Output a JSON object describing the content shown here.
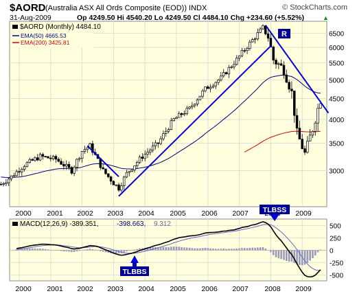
{
  "header": {
    "symbol": "$AORD",
    "name": "(Australia ASX All Ords Composite (EOD)) INDX",
    "watermark": "© StockCharts.com",
    "date": "31-Aug-2009",
    "quote": "Op 4249.50  Hi 4540.20  Lo 4249.50  Cl 4484.10  Chg +234.60 (+5.52%)",
    "quote_arrow": "▲"
  },
  "legend": {
    "main": "$AORD (Monthly) 4484.10",
    "ema50": "EMA(50) 4665.53",
    "ema200": "EMA(200) 3425.81"
  },
  "macd_legend": {
    "label": "MACD(12,26,9) -389.351,",
    "signal": "-398.663,",
    "hist": "9.312"
  },
  "annotations": {
    "r_label": "R",
    "tlbss_top": "TLBSS",
    "tlbbs_bottom": "TLBBS"
  },
  "colors": {
    "panel_bg": "#ffffdd",
    "candle": "#000000",
    "ema50": "#000080",
    "ema200": "#cc0000",
    "trendline": "#0000dd",
    "macd": "#000000",
    "signal": "#6666cc",
    "hist": "#9999bb",
    "label_bg": "#000099"
  },
  "chart_data": [
    {
      "type": "candlestick",
      "interval": "monthly",
      "x_ticks": [
        "2000",
        "2001",
        "2002",
        "2003",
        "2004",
        "2005",
        "2006",
        "2007",
        "2008",
        "2009"
      ],
      "y_ticks": [
        3000,
        3500,
        4000,
        4500,
        5000,
        5500,
        6000,
        6500
      ],
      "ylim": [
        2450,
        6950
      ],
      "y_scale": "log",
      "ohlc_series_start": "1999-06",
      "series": [
        {
          "name": "EMA(50)",
          "last": 4665.53
        },
        {
          "name": "EMA(200)",
          "last": 3425.81
        }
      ],
      "trendlines": [
        {
          "from": [
            "2002-03",
            3450
          ],
          "to": [
            "2003-03",
            2900
          ]
        },
        {
          "from": [
            "2003-03",
            2600
          ],
          "to": [
            "2008-01",
            6050
          ]
        },
        {
          "from": [
            "2007-11",
            6800
          ],
          "to": [
            "2009-11",
            4150
          ]
        }
      ]
    },
    {
      "type": "line",
      "title": "MACD(12,26,9)",
      "y_ticks": [
        500,
        250,
        0,
        -250,
        -500
      ],
      "ylim": [
        -620,
        630
      ],
      "series": [
        {
          "name": "MACD",
          "last": -389.351
        },
        {
          "name": "Signal",
          "last": -398.663
        },
        {
          "name": "Histogram",
          "last": 9.312
        }
      ]
    }
  ]
}
